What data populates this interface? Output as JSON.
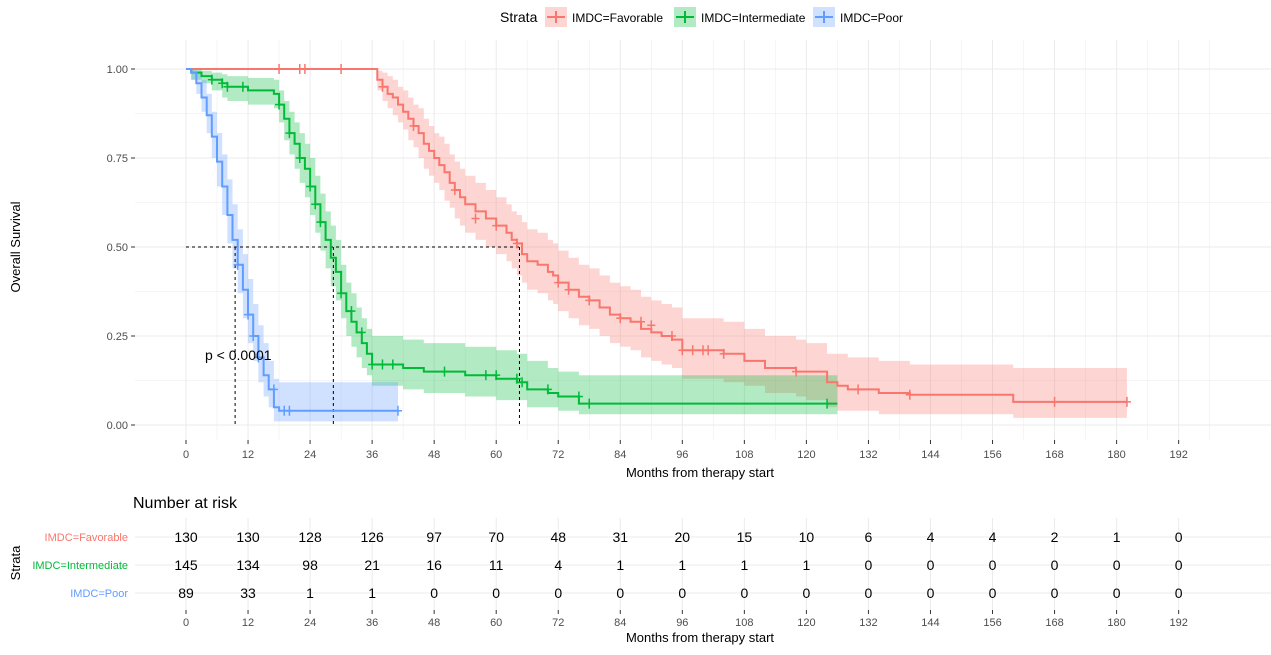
{
  "colors": {
    "favorable": "#F8766D",
    "intermediate": "#00BA38",
    "poor": "#619CFF",
    "favorable_band": "#F8766D",
    "intermediate_band": "#00BA38",
    "poor_band": "#619CFF",
    "grid": "#EBEBEB",
    "text": "#000000",
    "axis_text": "#4D4D4D"
  },
  "legend": {
    "title": "Strata",
    "items": [
      "IMDC=Favorable",
      "IMDC=Intermediate",
      "IMDC=Poor"
    ]
  },
  "chart_data": [
    {
      "type": "line",
      "subtype": "kaplan-meier",
      "xlabel": "Months from therapy start",
      "ylabel": "Overall Survival",
      "xlim": [
        0,
        192
      ],
      "ylim": [
        0,
        1
      ],
      "xticks": [
        0,
        12,
        24,
        36,
        48,
        60,
        72,
        84,
        96,
        108,
        120,
        132,
        144,
        156,
        168,
        180,
        192
      ],
      "yticks": [
        0.0,
        0.25,
        0.5,
        0.75,
        1.0
      ],
      "ytick_labels": [
        "0.00",
        "0.25",
        "0.50",
        "0.75",
        "1.00"
      ],
      "grid": true,
      "legend_position": "top",
      "annotation": "p < 0.0001",
      "median_line_y": 0.5,
      "medians": [
        9.5,
        28.5,
        64.5
      ],
      "series": [
        {
          "name": "IMDC=Favorable",
          "x": [
            0,
            36,
            37,
            38,
            39,
            40,
            41,
            42,
            43,
            44,
            45,
            46,
            47,
            48,
            49,
            50,
            51,
            52,
            53,
            54,
            56,
            58,
            60,
            62,
            63,
            64,
            65,
            66,
            68,
            70,
            71,
            72,
            74,
            76,
            78,
            80,
            82,
            84,
            86,
            88,
            90,
            92,
            94,
            96,
            100,
            104,
            108,
            112,
            118,
            120,
            124,
            126,
            128,
            134,
            140,
            160,
            182
          ],
          "y": [
            1.0,
            1.0,
            0.97,
            0.95,
            0.93,
            0.92,
            0.9,
            0.88,
            0.86,
            0.84,
            0.82,
            0.79,
            0.77,
            0.75,
            0.73,
            0.71,
            0.68,
            0.66,
            0.64,
            0.62,
            0.6,
            0.58,
            0.56,
            0.54,
            0.52,
            0.51,
            0.48,
            0.46,
            0.45,
            0.43,
            0.42,
            0.4,
            0.38,
            0.36,
            0.35,
            0.33,
            0.31,
            0.3,
            0.29,
            0.27,
            0.26,
            0.25,
            0.24,
            0.21,
            0.21,
            0.2,
            0.18,
            0.16,
            0.15,
            0.15,
            0.12,
            0.11,
            0.1,
            0.09,
            0.085,
            0.065,
            0.065
          ],
          "lower": [
            1.0,
            1.0,
            0.94,
            0.91,
            0.89,
            0.87,
            0.85,
            0.83,
            0.8,
            0.78,
            0.75,
            0.72,
            0.7,
            0.68,
            0.66,
            0.63,
            0.61,
            0.58,
            0.56,
            0.54,
            0.52,
            0.5,
            0.48,
            0.46,
            0.44,
            0.42,
            0.4,
            0.38,
            0.37,
            0.35,
            0.34,
            0.32,
            0.3,
            0.28,
            0.27,
            0.25,
            0.23,
            0.22,
            0.21,
            0.19,
            0.18,
            0.17,
            0.16,
            0.13,
            0.13,
            0.12,
            0.11,
            0.09,
            0.08,
            0.07,
            0.05,
            0.04,
            0.04,
            0.03,
            0.03,
            0.02,
            0.02
          ],
          "upper": [
            1.0,
            1.0,
            0.995,
            0.99,
            0.98,
            0.97,
            0.95,
            0.94,
            0.92,
            0.9,
            0.89,
            0.86,
            0.84,
            0.82,
            0.81,
            0.79,
            0.76,
            0.74,
            0.72,
            0.7,
            0.68,
            0.66,
            0.64,
            0.62,
            0.6,
            0.59,
            0.57,
            0.55,
            0.54,
            0.52,
            0.51,
            0.49,
            0.47,
            0.45,
            0.44,
            0.42,
            0.4,
            0.39,
            0.38,
            0.36,
            0.35,
            0.34,
            0.33,
            0.3,
            0.3,
            0.29,
            0.27,
            0.25,
            0.24,
            0.23,
            0.2,
            0.2,
            0.19,
            0.18,
            0.17,
            0.16,
            0.16
          ],
          "censor_x": [
            18,
            22,
            23,
            30,
            38,
            44,
            52,
            56,
            60,
            64,
            72,
            74,
            78,
            84,
            88,
            90,
            94,
            96,
            98,
            100,
            101,
            104,
            118,
            130,
            140,
            168,
            182
          ],
          "censor_y": [
            1.0,
            1.0,
            1.0,
            1.0,
            0.95,
            0.84,
            0.66,
            0.58,
            0.56,
            0.51,
            0.4,
            0.38,
            0.35,
            0.3,
            0.29,
            0.28,
            0.25,
            0.21,
            0.21,
            0.21,
            0.21,
            0.2,
            0.15,
            0.1,
            0.085,
            0.065,
            0.065
          ]
        },
        {
          "name": "IMDC=Intermediate",
          "x": [
            0,
            1,
            3,
            5,
            7,
            8,
            10,
            12,
            14,
            17,
            18,
            19,
            20,
            21,
            22,
            23,
            24,
            25,
            26,
            27,
            28,
            29,
            30,
            31,
            32,
            33,
            34,
            35,
            36,
            42,
            46,
            54,
            60,
            64,
            66,
            70,
            72,
            76,
            78,
            126
          ],
          "y": [
            1.0,
            0.99,
            0.98,
            0.97,
            0.96,
            0.95,
            0.95,
            0.94,
            0.94,
            0.93,
            0.9,
            0.86,
            0.82,
            0.79,
            0.75,
            0.72,
            0.67,
            0.62,
            0.57,
            0.52,
            0.47,
            0.43,
            0.37,
            0.32,
            0.29,
            0.26,
            0.23,
            0.2,
            0.17,
            0.16,
            0.15,
            0.14,
            0.13,
            0.12,
            0.1,
            0.09,
            0.08,
            0.06,
            0.06,
            0.06
          ],
          "lower": [
            1.0,
            0.97,
            0.96,
            0.94,
            0.92,
            0.91,
            0.91,
            0.9,
            0.9,
            0.89,
            0.85,
            0.8,
            0.76,
            0.72,
            0.68,
            0.64,
            0.59,
            0.54,
            0.49,
            0.44,
            0.39,
            0.35,
            0.3,
            0.25,
            0.22,
            0.19,
            0.16,
            0.14,
            0.11,
            0.1,
            0.09,
            0.08,
            0.07,
            0.07,
            0.05,
            0.05,
            0.04,
            0.03,
            0.03,
            0.03
          ],
          "upper": [
            1.0,
            1.0,
            0.995,
            0.99,
            0.985,
            0.98,
            0.98,
            0.975,
            0.975,
            0.97,
            0.94,
            0.91,
            0.88,
            0.85,
            0.82,
            0.79,
            0.75,
            0.7,
            0.65,
            0.6,
            0.56,
            0.52,
            0.45,
            0.4,
            0.37,
            0.33,
            0.3,
            0.27,
            0.25,
            0.24,
            0.23,
            0.22,
            0.21,
            0.2,
            0.18,
            0.16,
            0.15,
            0.14,
            0.14,
            0.14
          ],
          "censor_x": [
            5,
            7,
            8,
            11,
            18,
            20,
            22,
            24,
            25,
            26,
            30,
            32,
            34,
            36,
            38,
            40,
            50,
            58,
            60,
            64,
            65,
            70,
            76,
            78,
            124
          ],
          "censor_y": [
            0.97,
            0.96,
            0.95,
            0.95,
            0.9,
            0.82,
            0.75,
            0.67,
            0.62,
            0.57,
            0.37,
            0.32,
            0.26,
            0.17,
            0.17,
            0.17,
            0.15,
            0.14,
            0.14,
            0.13,
            0.12,
            0.1,
            0.08,
            0.06,
            0.06
          ]
        },
        {
          "name": "IMDC=Poor",
          "x": [
            0,
            1,
            2,
            3,
            4,
            5,
            6,
            7,
            8,
            9,
            10,
            11,
            12,
            13,
            14,
            15,
            16,
            17,
            18,
            41
          ],
          "y": [
            1.0,
            0.99,
            0.96,
            0.92,
            0.87,
            0.81,
            0.74,
            0.67,
            0.59,
            0.52,
            0.45,
            0.38,
            0.31,
            0.25,
            0.19,
            0.14,
            0.1,
            0.05,
            0.04,
            0.04
          ],
          "lower": [
            1.0,
            0.97,
            0.93,
            0.88,
            0.82,
            0.75,
            0.67,
            0.59,
            0.51,
            0.44,
            0.37,
            0.3,
            0.23,
            0.18,
            0.12,
            0.08,
            0.05,
            0.01,
            0.01,
            0.01
          ],
          "upper": [
            1.0,
            1.0,
            0.995,
            0.97,
            0.93,
            0.88,
            0.82,
            0.76,
            0.69,
            0.62,
            0.55,
            0.48,
            0.41,
            0.34,
            0.28,
            0.23,
            0.18,
            0.13,
            0.12,
            0.12
          ],
          "censor_x": [
            10,
            12,
            13,
            14,
            17,
            19,
            20,
            41
          ],
          "censor_y": [
            0.45,
            0.31,
            0.25,
            0.19,
            0.1,
            0.04,
            0.04,
            0.04
          ]
        }
      ]
    },
    {
      "type": "table",
      "title": "Number at risk",
      "ylabel": "Strata",
      "xlabel": "Months from therapy start",
      "columns": [
        0,
        12,
        24,
        36,
        48,
        60,
        72,
        84,
        96,
        108,
        120,
        132,
        144,
        156,
        168,
        180,
        192
      ],
      "rows": [
        {
          "name": "IMDC=Favorable",
          "values": [
            130,
            130,
            128,
            126,
            97,
            70,
            48,
            31,
            20,
            15,
            10,
            6,
            4,
            4,
            2,
            1,
            0
          ]
        },
        {
          "name": "IMDC=Intermediate",
          "values": [
            145,
            134,
            98,
            21,
            16,
            11,
            4,
            1,
            1,
            1,
            1,
            0,
            0,
            0,
            0,
            0,
            0
          ]
        },
        {
          "name": "IMDC=Poor",
          "values": [
            89,
            33,
            1,
            1,
            0,
            0,
            0,
            0,
            0,
            0,
            0,
            0,
            0,
            0,
            0,
            0,
            0
          ]
        }
      ]
    }
  ]
}
